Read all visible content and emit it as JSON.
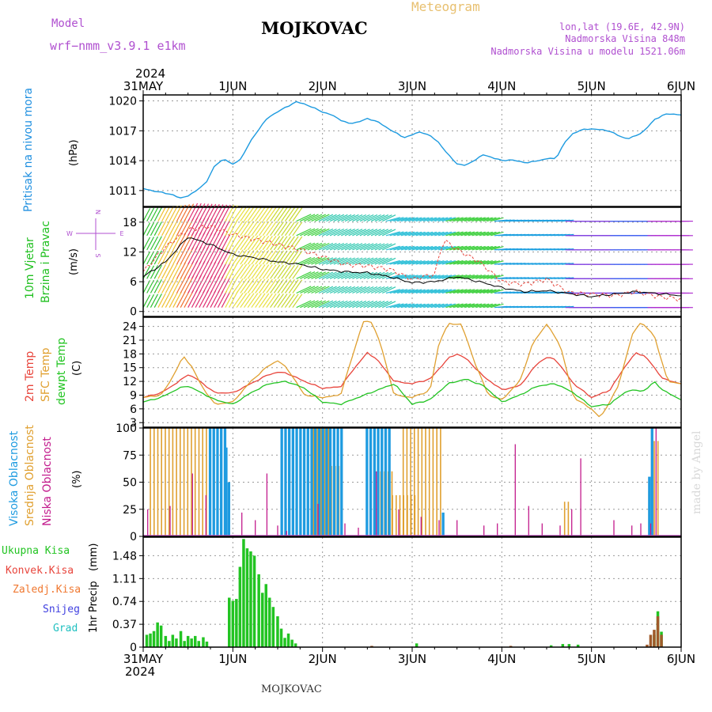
{
  "header": {
    "model_label": "Model",
    "model_name": "wrf−nmm_v3.9.1  e1km",
    "location": "MOJKOVAC",
    "product": "Meteogram",
    "coords": "lon,lat (19.6E, 42.9N)",
    "elevation": "Nadmorska Visina 848m",
    "model_elevation": "Nadmorska Visina u modelu 1521.06m",
    "year": "2024",
    "footer_location": "MOJKOVAC",
    "credit": "made by Angel"
  },
  "colors": {
    "pressure": "#1e9be0",
    "temp2m": "#e8453c",
    "sfc": "#e0a030",
    "dewpt": "#22c422",
    "high_cloud": "#1e9be0",
    "mid_cloud": "#e0a030",
    "low_cloud": "#c21a8c",
    "total_precip": "#22c422",
    "convective": "#e8453c",
    "freezing": "#f07830",
    "snow": "#4040e0",
    "hail": "#20c0c0",
    "wind_speed": "#000000",
    "wind_gust": "#e8453c"
  },
  "time_axis": {
    "labels": [
      "31MAY",
      "1JUN",
      "2JUN",
      "3JUN",
      "4JUN",
      "5JUN",
      "6JUN"
    ],
    "days_span": 6
  },
  "chart_data": [
    {
      "type": "line",
      "name": "pressure",
      "ylabel": "Pritisak na nivou mora",
      "unit": "(hPa)",
      "yticks": [
        1011,
        1014,
        1017,
        1020
      ],
      "ylim": [
        1009.4,
        1020.6
      ],
      "x": [
        0,
        0.08,
        0.17,
        0.25,
        0.33,
        0.42,
        0.5,
        0.6,
        0.7,
        0.8,
        0.9,
        1.0,
        1.1,
        1.2,
        1.3,
        1.4,
        1.5,
        1.6,
        1.7,
        1.8,
        1.9,
        2.0,
        2.1,
        2.2,
        2.3,
        2.4,
        2.5,
        2.6,
        2.7,
        2.8,
        2.9,
        3.0,
        3.1,
        3.2,
        3.3,
        3.4,
        3.5,
        3.6,
        3.7,
        3.8,
        3.9,
        4.0,
        4.1,
        4.2,
        4.3,
        4.4,
        4.5,
        4.6,
        4.7,
        4.8,
        4.9,
        5.0,
        5.1,
        5.2,
        5.3,
        5.4,
        5.5,
        5.6,
        5.7,
        5.8,
        5.9,
        6.0
      ],
      "y": [
        1011.2,
        1011.0,
        1010.9,
        1010.7,
        1010.6,
        1010.2,
        1010.5,
        1011.0,
        1011.8,
        1013.5,
        1014.2,
        1013.6,
        1014.3,
        1016.0,
        1017.3,
        1018.4,
        1018.9,
        1019.4,
        1019.9,
        1019.7,
        1019.3,
        1018.9,
        1018.6,
        1018.1,
        1017.7,
        1017.9,
        1018.2,
        1018.0,
        1017.4,
        1016.9,
        1016.3,
        1016.6,
        1016.9,
        1016.5,
        1015.8,
        1014.6,
        1013.7,
        1013.5,
        1014.1,
        1014.6,
        1014.3,
        1014.0,
        1014.1,
        1013.9,
        1013.8,
        1014.0,
        1014.2,
        1014.2,
        1015.8,
        1016.8,
        1017.1,
        1017.2,
        1017.1,
        1017.0,
        1016.5,
        1016.2,
        1016.5,
        1017.1,
        1018.1,
        1018.6,
        1018.7,
        1018.6
      ]
    },
    {
      "type": "line",
      "name": "wind",
      "ylabel": [
        "10m Vjetar",
        "Brzina i Pravac"
      ],
      "unit": "(m/s)",
      "yticks": [
        0,
        6,
        12,
        18
      ],
      "ylim": [
        -1,
        21
      ],
      "compass": [
        "N",
        "W",
        "E",
        "S"
      ],
      "series": [
        {
          "name": "speed",
          "x": [
            0,
            0.25,
            0.5,
            0.75,
            1.0,
            1.25,
            1.5,
            1.75,
            2.0,
            2.25,
            2.5,
            2.75,
            3.0,
            3.25,
            3.5,
            3.75,
            4.0,
            4.25,
            4.5,
            4.75,
            5.0,
            5.25,
            5.5,
            5.75,
            6.0
          ],
          "y": [
            7.0,
            10.0,
            15.0,
            13.5,
            11.5,
            10.8,
            10.0,
            9.5,
            8.5,
            8.0,
            7.8,
            7.0,
            5.8,
            6.0,
            7.0,
            6.0,
            4.8,
            4.0,
            4.2,
            3.6,
            3.0,
            3.5,
            4.0,
            3.6,
            3.2
          ]
        },
        {
          "name": "gust",
          "x": [
            0,
            0.25,
            0.5,
            0.75,
            1.0,
            1.25,
            1.5,
            1.75,
            2.0,
            2.25,
            2.5,
            2.75,
            3.0,
            3.25,
            3.35,
            3.5,
            3.75,
            4.0,
            4.25,
            4.5,
            4.75,
            5.0,
            5.25,
            5.5,
            5.75,
            6.0
          ],
          "y": [
            8.0,
            13.0,
            16.5,
            17.2,
            15.5,
            14.5,
            13.5,
            12.5,
            11.0,
            9.5,
            9.2,
            8.5,
            6.5,
            7.5,
            14.5,
            12.5,
            10.0,
            6.0,
            5.5,
            6.5,
            3.8,
            3.5,
            3.2,
            4.0,
            3.0,
            2.5
          ]
        }
      ]
    },
    {
      "type": "line",
      "name": "temperature",
      "ylabel": [
        "2m Temp",
        "SFC Temp",
        "dewpt Temp"
      ],
      "unit": "(C)",
      "yticks": [
        3,
        6,
        9,
        12,
        15,
        18,
        21,
        24
      ],
      "ylim": [
        2,
        26
      ],
      "series": [
        {
          "name": "2m Temp",
          "x": [
            0,
            0.2,
            0.4,
            0.5,
            0.6,
            0.8,
            1.0,
            1.2,
            1.4,
            1.5,
            1.6,
            1.8,
            2.0,
            2.2,
            2.4,
            2.5,
            2.6,
            2.8,
            3.0,
            3.2,
            3.4,
            3.5,
            3.6,
            3.8,
            4.0,
            4.2,
            4.4,
            4.5,
            4.6,
            4.8,
            5.0,
            5.2,
            5.4,
            5.5,
            5.6,
            5.8,
            6.0
          ],
          "y": [
            8.5,
            9.5,
            12.0,
            13.5,
            12.5,
            9.5,
            9.5,
            11.5,
            13.5,
            14.0,
            13.8,
            12.0,
            10.5,
            10.8,
            16.0,
            18.2,
            17.0,
            12.0,
            11.5,
            12.5,
            17.0,
            18.0,
            17.0,
            13.0,
            10.2,
            11.0,
            16.0,
            17.2,
            16.8,
            11.5,
            8.5,
            10.0,
            16.0,
            18.2,
            17.5,
            12.5,
            11.5
          ]
        },
        {
          "name": "SFC Temp",
          "x": [
            0,
            0.2,
            0.3,
            0.45,
            0.55,
            0.65,
            0.8,
            1.0,
            1.2,
            1.4,
            1.5,
            1.6,
            1.8,
            2.0,
            2.2,
            2.35,
            2.45,
            2.55,
            2.65,
            2.8,
            3.0,
            3.2,
            3.3,
            3.4,
            3.55,
            3.7,
            3.85,
            4.0,
            4.2,
            4.35,
            4.5,
            4.65,
            4.8,
            5.0,
            5.1,
            5.3,
            5.45,
            5.55,
            5.7,
            5.85,
            6.0
          ],
          "y": [
            8.5,
            9.0,
            12.0,
            17.5,
            15.0,
            11.0,
            7.0,
            7.5,
            12.0,
            15.5,
            16.5,
            15.0,
            9.0,
            8.5,
            9.0,
            18.5,
            25.0,
            25.0,
            20.0,
            9.0,
            8.5,
            10.0,
            20.5,
            24.5,
            24.5,
            16.0,
            9.0,
            8.0,
            12.0,
            20.5,
            24.5,
            20.0,
            8.5,
            6.0,
            4.0,
            11.0,
            22.0,
            25.0,
            22.0,
            12.0,
            11.5
          ]
        },
        {
          "name": "dewpt Temp",
          "x": [
            0,
            0.2,
            0.4,
            0.5,
            0.6,
            0.8,
            1.0,
            1.2,
            1.4,
            1.6,
            1.8,
            2.0,
            2.2,
            2.4,
            2.6,
            2.8,
            3.0,
            3.2,
            3.4,
            3.6,
            3.8,
            4.0,
            4.2,
            4.4,
            4.6,
            4.8,
            5.0,
            5.2,
            5.4,
            5.6,
            5.7,
            5.8,
            6.0
          ],
          "y": [
            7.5,
            8.5,
            10.5,
            11.0,
            10.0,
            8.0,
            7.0,
            9.5,
            11.5,
            12.0,
            10.5,
            7.5,
            7.0,
            8.5,
            10.0,
            11.5,
            7.0,
            8.0,
            11.5,
            12.5,
            11.0,
            7.5,
            9.0,
            11.0,
            11.5,
            9.5,
            6.5,
            7.0,
            10.0,
            10.0,
            12.0,
            10.0,
            8.0
          ]
        }
      ]
    },
    {
      "type": "bar",
      "name": "cloud cover",
      "ylabel": [
        "Visoka Oblacnost",
        "Srednja Oblacnost",
        "Niska Oblacnost"
      ],
      "unit": "(%)",
      "yticks": [
        0,
        25,
        50,
        75,
        100
      ],
      "ylim": [
        0,
        100
      ],
      "series": [
        {
          "name": "Visoka Oblacnost",
          "spans": [
            [
              0.75,
              0.93,
              100
            ],
            [
              0.93,
              0.96,
              82
            ],
            [
              0.96,
              0.99,
              50
            ],
            [
              1.55,
              2.22,
              100
            ],
            [
              2.5,
              2.75,
              100
            ],
            [
              3.35,
              3.38,
              22
            ],
            [
              5.65,
              5.68,
              55
            ],
            [
              5.68,
              5.72,
              100
            ]
          ]
        },
        {
          "name": "Srednja Oblacnost",
          "spans": [
            [
              0.08,
              0.72,
              100
            ],
            [
              1.9,
              2.1,
              100
            ],
            [
              2.1,
              2.22,
              65
            ],
            [
              2.65,
              2.78,
              60
            ],
            [
              2.78,
              3.05,
              38
            ],
            [
              2.9,
              3.32,
              100
            ],
            [
              4.7,
              4.76,
              32
            ],
            [
              5.64,
              5.7,
              42
            ],
            [
              5.7,
              5.76,
              88
            ]
          ]
        },
        {
          "name": "Niska Oblacnost",
          "points": [
            [
              0.05,
              25
            ],
            [
              0.3,
              28
            ],
            [
              0.55,
              58
            ],
            [
              0.7,
              38
            ],
            [
              1.1,
              22
            ],
            [
              1.25,
              15
            ],
            [
              1.38,
              58
            ],
            [
              1.5,
              10
            ],
            [
              1.6,
              5
            ],
            [
              1.95,
              30
            ],
            [
              2.25,
              12
            ],
            [
              2.4,
              8
            ],
            [
              2.6,
              60
            ],
            [
              2.85,
              25
            ],
            [
              3.1,
              18
            ],
            [
              3.3,
              15
            ],
            [
              3.5,
              15
            ],
            [
              3.8,
              10
            ],
            [
              3.95,
              12
            ],
            [
              4.15,
              85
            ],
            [
              4.3,
              28
            ],
            [
              4.45,
              12
            ],
            [
              4.65,
              10
            ],
            [
              4.78,
              25
            ],
            [
              4.88,
              72
            ],
            [
              5.25,
              15
            ],
            [
              5.45,
              10
            ],
            [
              5.55,
              12
            ],
            [
              5.66,
              12
            ],
            [
              5.72,
              100
            ]
          ]
        }
      ]
    },
    {
      "type": "bar",
      "name": "precipitation",
      "ylabel": "1hr Precip",
      "unit": "(mm)",
      "yticks": [
        0,
        0.37,
        0.74,
        1.11,
        1.48
      ],
      "ylim": [
        0,
        1.78
      ],
      "legend": [
        "Ukupna Kisa",
        "Konvek.Kisa",
        "Zaledj.Kisa",
        "Snijeg",
        "Grad"
      ],
      "series": [
        {
          "name": "Ukupna Kisa",
          "bars": [
            [
              0.04,
              0.2
            ],
            [
              0.08,
              0.22
            ],
            [
              0.12,
              0.26
            ],
            [
              0.16,
              0.4
            ],
            [
              0.2,
              0.35
            ],
            [
              0.25,
              0.18
            ],
            [
              0.29,
              0.1
            ],
            [
              0.33,
              0.2
            ],
            [
              0.37,
              0.14
            ],
            [
              0.42,
              0.26
            ],
            [
              0.46,
              0.1
            ],
            [
              0.5,
              0.18
            ],
            [
              0.54,
              0.14
            ],
            [
              0.58,
              0.18
            ],
            [
              0.62,
              0.1
            ],
            [
              0.67,
              0.16
            ],
            [
              0.71,
              0.09
            ],
            [
              0.96,
              0.8
            ],
            [
              1.0,
              0.75
            ],
            [
              1.04,
              0.78
            ],
            [
              1.08,
              1.3
            ],
            [
              1.12,
              1.75
            ],
            [
              1.16,
              1.6
            ],
            [
              1.2,
              1.55
            ],
            [
              1.24,
              1.48
            ],
            [
              1.29,
              1.18
            ],
            [
              1.33,
              0.88
            ],
            [
              1.37,
              1.02
            ],
            [
              1.41,
              0.8
            ],
            [
              1.45,
              0.65
            ],
            [
              1.5,
              0.5
            ],
            [
              1.54,
              0.3
            ],
            [
              1.58,
              0.15
            ],
            [
              1.62,
              0.22
            ],
            [
              1.66,
              0.12
            ],
            [
              1.7,
              0.06
            ],
            [
              3.05,
              0.06
            ],
            [
              4.55,
              0.03
            ],
            [
              4.68,
              0.05
            ],
            [
              4.75,
              0.05
            ],
            [
              4.85,
              0.04
            ],
            [
              5.7,
              0.2
            ],
            [
              5.74,
              0.58
            ],
            [
              5.78,
              0.25
            ]
          ]
        },
        {
          "name": "Konvek.Kisa",
          "bars": [
            [
              2.55,
              0.02
            ],
            [
              4.1,
              0.02
            ],
            [
              5.62,
              0.04
            ],
            [
              5.66,
              0.2
            ],
            [
              5.7,
              0.28
            ],
            [
              5.74,
              0.5
            ],
            [
              5.78,
              0.2
            ]
          ]
        }
      ]
    }
  ]
}
